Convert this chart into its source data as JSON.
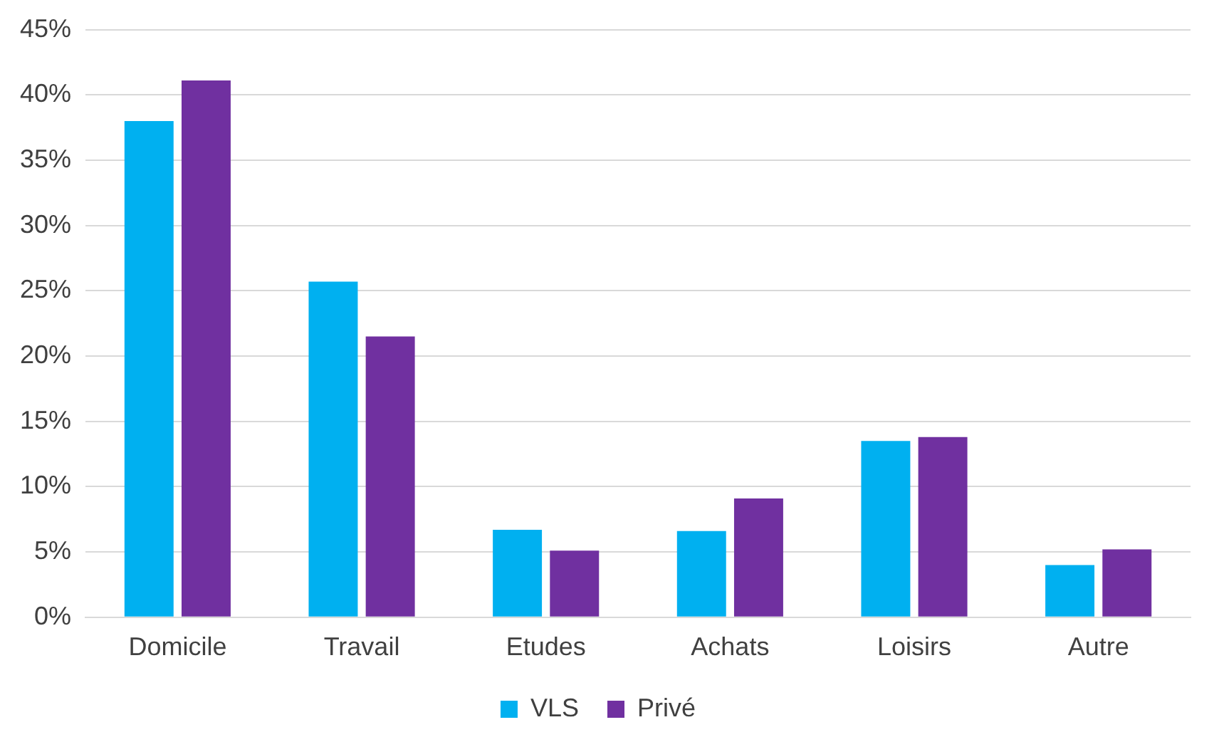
{
  "chart_data": {
    "type": "bar",
    "categories": [
      "Domicile",
      "Travail",
      "Etudes",
      "Achats",
      "Loisirs",
      "Autre"
    ],
    "series": [
      {
        "name": "VLS",
        "color": "#00b0f0",
        "values": [
          38.0,
          25.7,
          6.7,
          6.6,
          13.5,
          4.0
        ]
      },
      {
        "name": "Privé",
        "color": "#7030a0",
        "values": [
          41.1,
          21.5,
          5.1,
          9.1,
          13.8,
          5.2
        ]
      }
    ],
    "ylim": [
      0,
      45
    ],
    "yticks": [
      {
        "value": 0,
        "label": "0%"
      },
      {
        "value": 5,
        "label": "5%"
      },
      {
        "value": 10,
        "label": "10%"
      },
      {
        "value": 15,
        "label": "15%"
      },
      {
        "value": 20,
        "label": "20%"
      },
      {
        "value": 25,
        "label": "25%"
      },
      {
        "value": 30,
        "label": "30%"
      },
      {
        "value": 35,
        "label": "35%"
      },
      {
        "value": 40,
        "label": "40%"
      },
      {
        "value": 45,
        "label": "45%"
      }
    ],
    "grid": "y",
    "legend": "bottom"
  }
}
